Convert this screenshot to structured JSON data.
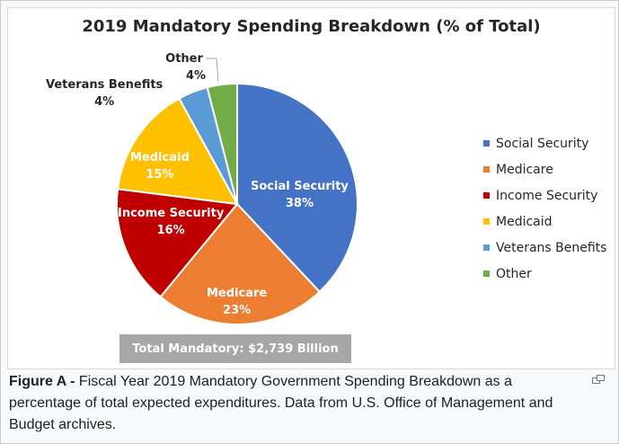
{
  "chart_data": {
    "type": "pie",
    "title": "2019 Mandatory Spending Breakdown (% of Total)",
    "slices": [
      {
        "label": "Social Security",
        "value": 38,
        "value_label": "38%",
        "color": "#4472c4"
      },
      {
        "label": "Medicare",
        "value": 23,
        "value_label": "23%",
        "color": "#ed7d31"
      },
      {
        "label": "Income Security",
        "value": 16,
        "value_label": "16%",
        "color": "#c00000"
      },
      {
        "label": "Medicaid",
        "value": 15,
        "value_label": "15%",
        "color": "#ffc000"
      },
      {
        "label": "Veterans Benefits",
        "value": 4,
        "value_label": "4%",
        "color": "#5b9bd5"
      },
      {
        "label": "Other",
        "value": 4,
        "value_label": "4%",
        "color": "#70ad47"
      }
    ],
    "legend_position": "right",
    "total_label": "Total Mandatory: $2,739 Billion"
  },
  "caption": {
    "label": "Figure A -",
    "text": " Fiscal Year 2019 Mandatory Government Spending Breakdown as a percentage of total expected expenditures. Data from U.S. Office of Management and Budget archives."
  },
  "icons": {
    "enlarge": "enlarge-icon"
  }
}
